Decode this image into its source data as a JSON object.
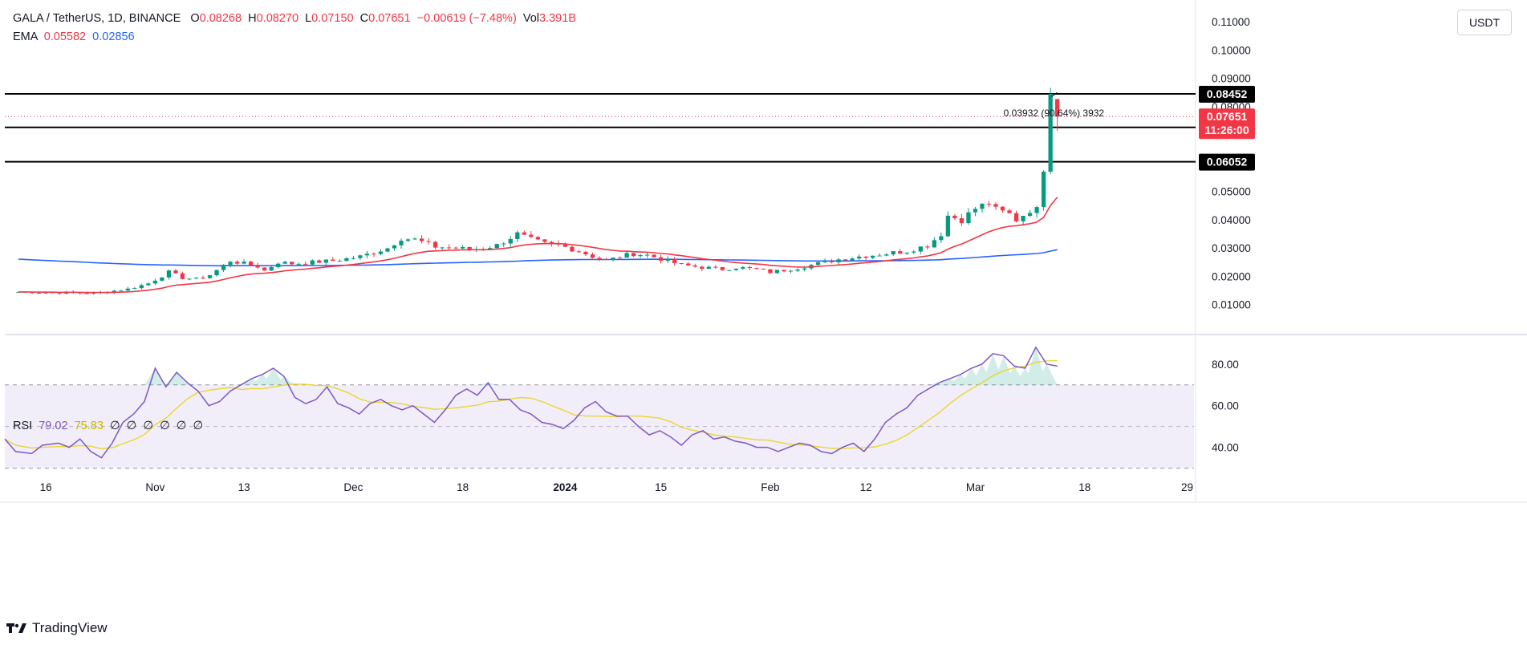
{
  "header": {
    "symbol": "GALA / TetherUS, 1D, BINANCE",
    "o_label": "O",
    "o_value": "0.08268",
    "h_label": "H",
    "h_value": "0.08270",
    "l_label": "L",
    "l_value": "0.07150",
    "c_label": "C",
    "c_value": "0.07651",
    "change": "−0.00619 (−7.48%)",
    "vol_label": "Vol",
    "vol_value": "3.391B",
    "ema_label": "EMA",
    "ema_fast": "0.05582",
    "ema_slow": "0.02856",
    "rsi_label": "RSI",
    "rsi_value": "79.02",
    "rsi_ma": "75.83",
    "rsi_empty": [
      "∅",
      "∅",
      "∅",
      "∅",
      "∅",
      "∅"
    ]
  },
  "currency": "USDT",
  "branding": "TradingView",
  "colors": {
    "up": "#089981",
    "down": "#f23645",
    "ema_fast": "#f23645",
    "ema_slow": "#2962ff",
    "rsi": "#7e57c2",
    "rsi_ma": "#e8d630",
    "band": "#7e57c2"
  },
  "chart_data": [
    {
      "type": "candlestick",
      "title": "GALA / TetherUS, 1D, BINANCE",
      "ylim": [
        0,
        0.116
      ],
      "y_ticks": [
        "0.01000",
        "0.02000",
        "0.03000",
        "0.04000",
        "0.05000",
        "0.08000",
        "0.09000",
        "0.10000",
        "0.11000"
      ],
      "x_ticks": [
        "16",
        "Nov",
        "13",
        "Dec",
        "18",
        "2024",
        "15",
        "Feb",
        "12",
        "Mar",
        "18",
        "29"
      ],
      "x_tick_days": [
        4,
        20,
        33,
        49,
        65,
        80,
        94,
        110,
        124,
        140,
        156,
        171
      ],
      "day_range": [
        -2,
        172
      ],
      "horizontal_levels": [
        {
          "value": 0.08452,
          "label": "0.08452"
        },
        {
          "value": 0.07268,
          "label": "0.07268"
        },
        {
          "value": 0.06052,
          "label": "0.06052"
        }
      ],
      "last_price": {
        "value": 0.07651,
        "label": "0.07651",
        "countdown": "11:26:00"
      },
      "measure_annotation": "0.03932 (90.64%) 3932",
      "close_anchors": [
        [
          0,
          0.0145
        ],
        [
          8,
          0.0142
        ],
        [
          11,
          0.014
        ],
        [
          16,
          0.0155
        ],
        [
          19,
          0.0175
        ],
        [
          22,
          0.0215
        ],
        [
          24,
          0.0195
        ],
        [
          26,
          0.019
        ],
        [
          28,
          0.0205
        ],
        [
          31,
          0.0255
        ],
        [
          33,
          0.0245
        ],
        [
          35,
          0.0235
        ],
        [
          36,
          0.022
        ],
        [
          38,
          0.025
        ],
        [
          40,
          0.0245
        ],
        [
          42,
          0.0248
        ],
        [
          44,
          0.0252
        ],
        [
          46,
          0.0255
        ],
        [
          50,
          0.027
        ],
        [
          54,
          0.03
        ],
        [
          56,
          0.0335
        ],
        [
          58,
          0.033
        ],
        [
          61,
          0.0305
        ],
        [
          64,
          0.03
        ],
        [
          66,
          0.0295
        ],
        [
          68,
          0.03
        ],
        [
          70,
          0.031
        ],
        [
          73,
          0.035
        ],
        [
          75,
          0.033
        ],
        [
          77,
          0.0315
        ],
        [
          79,
          0.031
        ],
        [
          82,
          0.029
        ],
        [
          84,
          0.027
        ],
        [
          86,
          0.0255
        ],
        [
          88,
          0.027
        ],
        [
          90,
          0.028
        ],
        [
          92,
          0.0275
        ],
        [
          95,
          0.0255
        ],
        [
          97,
          0.024
        ],
        [
          100,
          0.0232
        ],
        [
          103,
          0.0225
        ],
        [
          105,
          0.0232
        ],
        [
          108,
          0.0225
        ],
        [
          110,
          0.0215
        ],
        [
          112,
          0.0222
        ],
        [
          114,
          0.023
        ],
        [
          117,
          0.0245
        ],
        [
          120,
          0.026
        ],
        [
          123,
          0.027
        ],
        [
          126,
          0.0278
        ],
        [
          130,
          0.029
        ],
        [
          133,
          0.031
        ],
        [
          135,
          0.035
        ],
        [
          136,
          0.0415
        ],
        [
          138,
          0.04
        ],
        [
          140,
          0.044
        ],
        [
          142,
          0.046
        ],
        [
          143,
          0.0435
        ],
        [
          145,
          0.042
        ],
        [
          146,
          0.04
        ],
        [
          148,
          0.0435
        ],
        [
          149,
          0.0435
        ],
        [
          150,
          0.057
        ],
        [
          151,
          0.0845
        ],
        [
          152,
          0.07651
        ]
      ],
      "last_candle": {
        "open": 0.08268,
        "high": 0.0827,
        "low": 0.0715,
        "close": 0.07651
      },
      "series": [
        {
          "name": "EMA 20",
          "color": "#f23645",
          "value": 0.05582
        },
        {
          "name": "EMA 200",
          "color": "#2962ff",
          "value": 0.02856
        }
      ]
    },
    {
      "type": "line",
      "title": "RSI",
      "ylim": [
        26,
        93
      ],
      "y_ticks": [
        "40.00",
        "60.00",
        "80.00"
      ],
      "band": [
        30,
        70
      ],
      "midline": 50,
      "series": [
        {
          "name": "RSI",
          "color": "#7e57c2",
          "value": 79.02,
          "points": [
            [
              -2,
              44
            ],
            [
              0,
              38
            ],
            [
              3,
              37
            ],
            [
              5,
              41
            ],
            [
              8,
              42
            ],
            [
              10,
              40
            ],
            [
              12,
              44
            ],
            [
              14,
              38
            ],
            [
              16,
              35
            ],
            [
              18,
              42
            ],
            [
              20,
              52
            ],
            [
              22,
              56
            ],
            [
              24,
              62
            ],
            [
              26,
              78
            ],
            [
              28,
              69
            ],
            [
              30,
              76
            ],
            [
              32,
              71
            ],
            [
              34,
              67
            ],
            [
              36,
              60
            ],
            [
              38,
              62
            ],
            [
              40,
              67
            ],
            [
              42,
              70
            ],
            [
              44,
              73
            ],
            [
              46,
              75
            ],
            [
              48,
              78
            ],
            [
              50,
              74
            ],
            [
              52,
              64
            ],
            [
              54,
              61
            ],
            [
              56,
              63
            ],
            [
              58,
              69
            ],
            [
              60,
              61
            ],
            [
              62,
              59
            ],
            [
              64,
              56
            ],
            [
              66,
              61
            ],
            [
              68,
              63
            ],
            [
              70,
              60
            ],
            [
              72,
              58
            ],
            [
              74,
              60
            ],
            [
              76,
              56
            ],
            [
              78,
              52
            ],
            [
              80,
              58
            ],
            [
              82,
              65
            ],
            [
              84,
              68
            ],
            [
              86,
              65
            ],
            [
              88,
              71
            ],
            [
              90,
              63
            ],
            [
              92,
              63
            ],
            [
              94,
              58
            ],
            [
              96,
              56
            ],
            [
              98,
              52
            ],
            [
              100,
              51
            ],
            [
              102,
              49
            ],
            [
              104,
              53
            ],
            [
              106,
              59
            ],
            [
              108,
              62
            ],
            [
              110,
              57
            ],
            [
              112,
              55
            ],
            [
              114,
              55
            ],
            [
              116,
              50
            ],
            [
              118,
              46
            ],
            [
              120,
              48
            ],
            [
              122,
              45
            ],
            [
              124,
              41
            ],
            [
              126,
              46
            ],
            [
              128,
              48
            ],
            [
              130,
              44
            ],
            [
              132,
              45
            ],
            [
              134,
              43
            ],
            [
              136,
              42
            ],
            [
              138,
              40
            ],
            [
              140,
              40
            ],
            [
              142,
              38
            ],
            [
              144,
              40
            ],
            [
              146,
              42
            ],
            [
              148,
              41
            ],
            [
              150,
              38
            ],
            [
              152,
              37
            ],
            [
              154,
              40
            ],
            [
              156,
              42
            ],
            [
              158,
              38
            ],
            [
              160,
              44
            ],
            [
              162,
              52
            ],
            [
              164,
              56
            ],
            [
              166,
              59
            ],
            [
              168,
              65
            ],
            [
              170,
              68
            ],
            [
              172,
              71
            ],
            [
              174,
              73
            ],
            [
              176,
              75
            ],
            [
              178,
              78
            ],
            [
              180,
              80
            ],
            [
              182,
              85
            ],
            [
              184,
              84
            ],
            [
              186,
              79
            ],
            [
              188,
              78
            ],
            [
              190,
              88
            ],
            [
              192,
              80
            ],
            [
              194,
              79
            ]
          ]
        },
        {
          "name": "RSI MA",
          "color": "#e8d630",
          "value": 75.83
        }
      ]
    }
  ]
}
